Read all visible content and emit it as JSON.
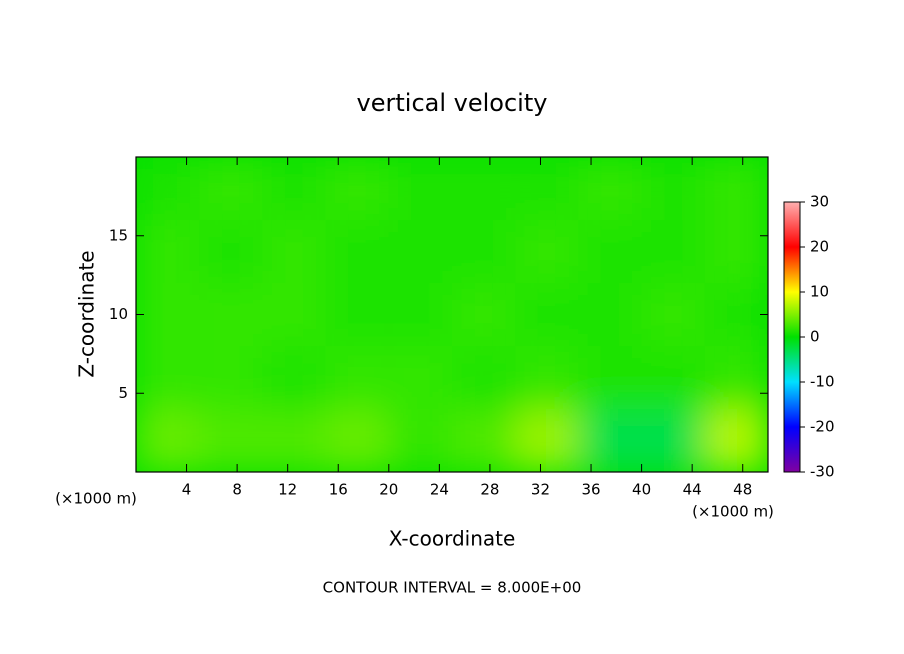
{
  "chart_data": {
    "type": "heatmap",
    "title": "vertical velocity",
    "x_label": "X-coordinate",
    "y_label": "Z-coordinate",
    "x_unit": "(×1000 m)",
    "y_unit": "(×1000 m)",
    "footnote": "CONTOUR INTERVAL = 8.000E+00",
    "x": [
      2.5,
      7.5,
      12.5,
      17.5,
      22.5,
      27.5,
      32.5,
      37.5,
      42.5,
      47.5
    ],
    "y": [
      2,
      6,
      10,
      14,
      18
    ],
    "z": [
      [
        4,
        3,
        3,
        4,
        2,
        3,
        6,
        -3,
        -3,
        7
      ],
      [
        2,
        2,
        1,
        2,
        2,
        1,
        2,
        1,
        1,
        2
      ],
      [
        2,
        2,
        2,
        1,
        1,
        2,
        1,
        1,
        2,
        1
      ],
      [
        2,
        1,
        2,
        1,
        1,
        1,
        2,
        1,
        1,
        2
      ],
      [
        1,
        2,
        1,
        2,
        1,
        1,
        1,
        2,
        1,
        2
      ]
    ],
    "xlim": [
      0,
      50
    ],
    "xticks": [
      4,
      8,
      12,
      16,
      20,
      24,
      28,
      32,
      36,
      40,
      44,
      48
    ],
    "ylim": [
      0,
      20
    ],
    "yticks": [
      5,
      10,
      15
    ],
    "clim": [
      -30,
      30
    ],
    "cticks": [
      -30,
      -20,
      -10,
      0,
      10,
      20,
      30
    ],
    "colors": [
      "#8000a0",
      "#0000ff",
      "#00e0ff",
      "#00e000",
      "#ffff00",
      "#ff0000",
      "#ffb0b0"
    ]
  }
}
